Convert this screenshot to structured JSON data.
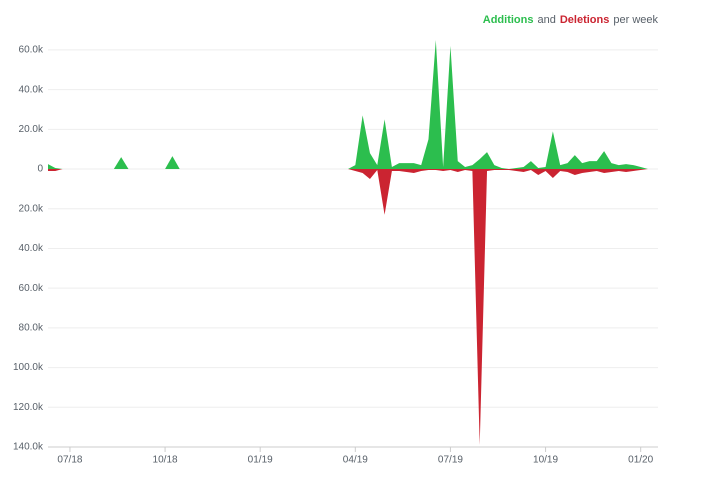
{
  "chart_data": {
    "type": "area",
    "legend_joiners": [
      "and",
      "per week"
    ],
    "categories": [
      null,
      null,
      null,
      "07/18",
      null,
      null,
      null,
      null,
      null,
      null,
      null,
      null,
      null,
      null,
      null,
      null,
      "10/18",
      null,
      null,
      null,
      null,
      null,
      null,
      null,
      null,
      null,
      null,
      null,
      null,
      "01/19",
      null,
      null,
      null,
      null,
      null,
      null,
      null,
      null,
      null,
      null,
      null,
      null,
      "04/19",
      null,
      null,
      null,
      null,
      null,
      null,
      null,
      null,
      null,
      null,
      null,
      null,
      "07/19",
      null,
      null,
      null,
      null,
      null,
      null,
      null,
      null,
      null,
      null,
      null,
      null,
      "10/19",
      null,
      null,
      null,
      null,
      null,
      null,
      null,
      null,
      null,
      null,
      null,
      null,
      "01/20",
      null
    ],
    "series": [
      {
        "name": "Additions",
        "color": "#2cbe4e",
        "values": [
          2500,
          500,
          0,
          0,
          0,
          0,
          0,
          0,
          0,
          0,
          6000,
          0,
          0,
          0,
          0,
          0,
          0,
          6500,
          0,
          0,
          0,
          0,
          0,
          0,
          0,
          0,
          0,
          0,
          0,
          0,
          0,
          0,
          0,
          0,
          0,
          0,
          0,
          0,
          0,
          0,
          0,
          0,
          2000,
          27000,
          8000,
          2000,
          25000,
          1000,
          3000,
          3000,
          3000,
          2000,
          15000,
          65000,
          1000,
          62000,
          4000,
          1000,
          2000,
          5000,
          8500,
          2000,
          500,
          0,
          500,
          1000,
          4000,
          500,
          1000,
          19000,
          2000,
          3000,
          7000,
          3000,
          4000,
          4000,
          9000,
          3000,
          2000,
          2500,
          2000,
          1000,
          0
        ]
      },
      {
        "name": "Deletions",
        "color": "#cb2431",
        "values": [
          -1000,
          -1000,
          0,
          0,
          0,
          0,
          0,
          0,
          0,
          0,
          0,
          0,
          0,
          0,
          0,
          0,
          0,
          0,
          0,
          0,
          0,
          0,
          0,
          0,
          0,
          0,
          0,
          0,
          0,
          0,
          0,
          0,
          0,
          0,
          0,
          0,
          0,
          0,
          0,
          0,
          0,
          0,
          -1000,
          -2000,
          -5000,
          -500,
          -23000,
          -1000,
          -1000,
          -1500,
          -2000,
          -1000,
          -500,
          -500,
          -1000,
          -500,
          -1500,
          -500,
          -1000,
          -139000,
          -1000,
          -500,
          -500,
          -500,
          -1000,
          -1500,
          -500,
          -3000,
          -1000,
          -4500,
          -1000,
          -1500,
          -3000,
          -2000,
          -1500,
          -1000,
          -2000,
          -1500,
          -1000,
          -1500,
          -1000,
          -500,
          0
        ]
      }
    ],
    "ylim": [
      -140000,
      66000
    ],
    "yticks": [
      {
        "value": 60000,
        "label": "60.0k"
      },
      {
        "value": 40000,
        "label": "40.0k"
      },
      {
        "value": 20000,
        "label": "20.0k"
      },
      0,
      {
        "value": -20000,
        "label": "20.0k"
      },
      {
        "value": -40000,
        "label": "40.0k"
      },
      {
        "value": -60000,
        "label": "60.0k"
      },
      {
        "value": -80000,
        "label": "80.0k"
      },
      {
        "value": -100000,
        "label": "100.0k"
      },
      {
        "value": -120000,
        "label": "120.0k"
      },
      {
        "value": -140000,
        "label": "140.0k"
      }
    ],
    "grid": true
  }
}
